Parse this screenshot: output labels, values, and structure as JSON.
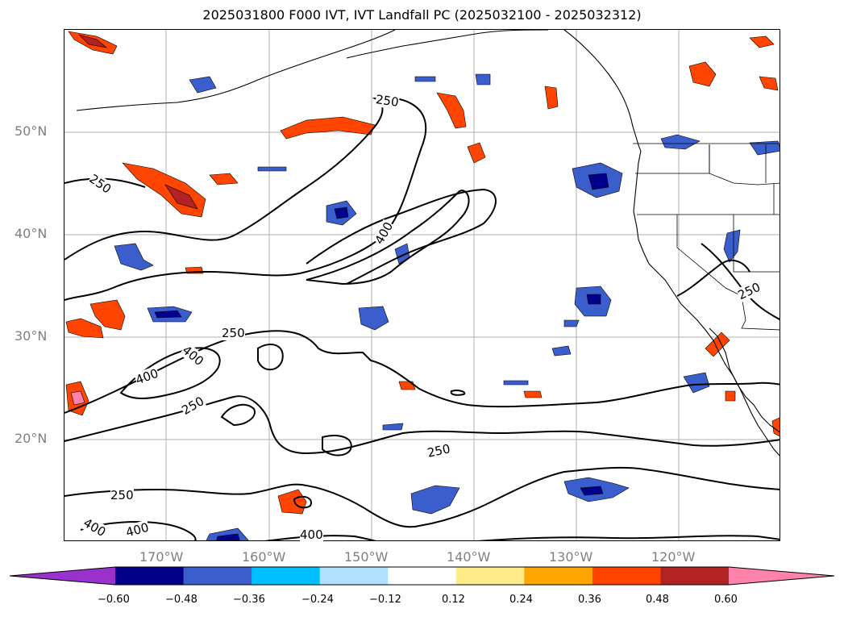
{
  "title": "2025031800 F000 IVT, IVT Landfall PC (2025032100 - 2025032312)",
  "lat_labels": [
    "20°N",
    "30°N",
    "40°N",
    "50°N"
  ],
  "lon_labels": [
    "170°W",
    "160°W",
    "150°W",
    "140°W",
    "130°W",
    "120°W"
  ],
  "contour_labels": [
    "250",
    "250",
    "250",
    "250",
    "250",
    "250",
    "250",
    "400",
    "400",
    "400",
    "400",
    "400",
    "400"
  ],
  "colorbar": {
    "ticks": [
      "−0.60",
      "−0.48",
      "−0.36",
      "−0.24",
      "−0.12",
      "0.12",
      "0.24",
      "0.36",
      "0.48",
      "0.60"
    ],
    "colors": [
      "#9932cc",
      "#00008b",
      "#3a5fcd",
      "#00bfff",
      "#b0e2ff",
      "#ffffff",
      "#ffec8b",
      "#ffa500",
      "#ff4500",
      "#b22222",
      "#ff82ab"
    ]
  },
  "colors": {
    "contour": "#000000",
    "grid": "#b0b0b0",
    "coast": "#000000"
  }
}
